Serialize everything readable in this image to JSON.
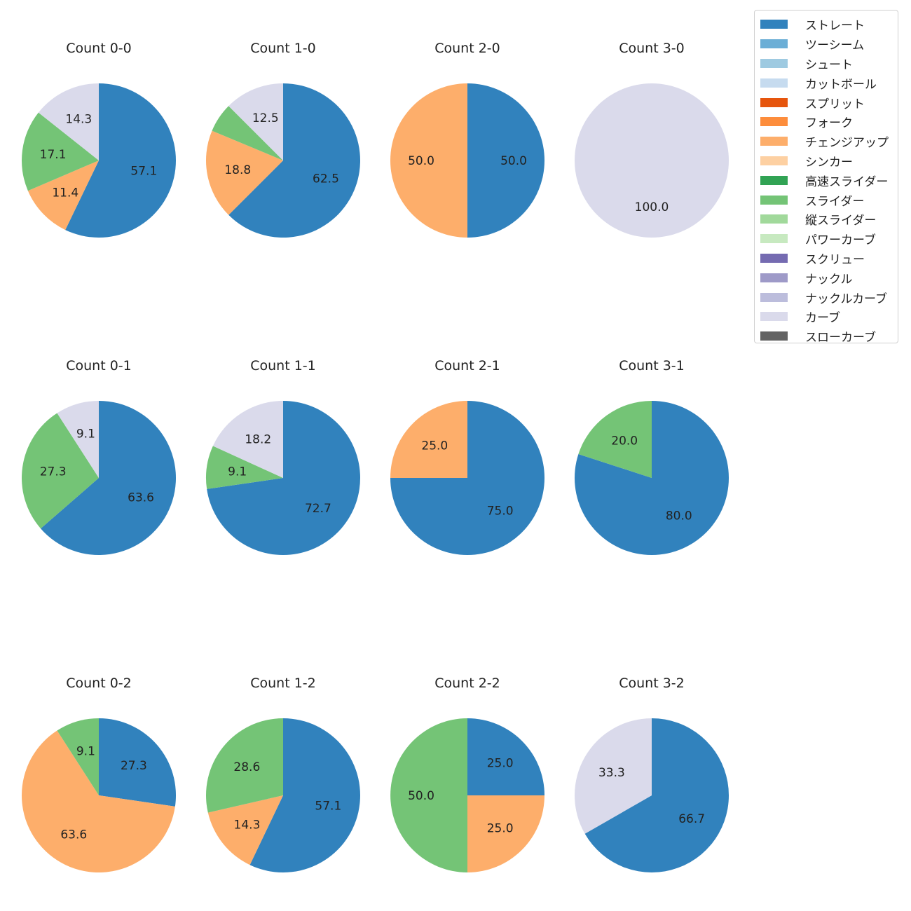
{
  "legend": {
    "placement": "top-right",
    "items": [
      {
        "label": "ストレート",
        "color": "#3182bd"
      },
      {
        "label": "ツーシーム",
        "color": "#6baed6"
      },
      {
        "label": "シュート",
        "color": "#9ecae1"
      },
      {
        "label": "カットボール",
        "color": "#c6dbef"
      },
      {
        "label": "スプリット",
        "color": "#e6550d"
      },
      {
        "label": "フォーク",
        "color": "#fd8d3c"
      },
      {
        "label": "チェンジアップ",
        "color": "#fdae6b"
      },
      {
        "label": "シンカー",
        "color": "#fdd0a2"
      },
      {
        "label": "高速スライダー",
        "color": "#31a354"
      },
      {
        "label": "スライダー",
        "color": "#74c476"
      },
      {
        "label": "縦スライダー",
        "color": "#a1d99b"
      },
      {
        "label": "パワーカーブ",
        "color": "#c7e9c0"
      },
      {
        "label": "スクリュー",
        "color": "#756bb1"
      },
      {
        "label": "ナックル",
        "color": "#9e9ac8"
      },
      {
        "label": "ナックルカーブ",
        "color": "#bcbddc"
      },
      {
        "label": "カーブ",
        "color": "#dadaeb"
      },
      {
        "label": "スローカーブ",
        "color": "#636363"
      }
    ]
  },
  "chart_data": [
    {
      "type": "pie",
      "title": "Count 0-0",
      "slices": [
        {
          "name": "ストレート",
          "value": 57.1
        },
        {
          "name": "チェンジアップ",
          "value": 11.4
        },
        {
          "name": "スライダー",
          "value": 17.1
        },
        {
          "name": "カーブ",
          "value": 14.3
        }
      ]
    },
    {
      "type": "pie",
      "title": "Count 1-0",
      "slices": [
        {
          "name": "ストレート",
          "value": 62.5
        },
        {
          "name": "チェンジアップ",
          "value": 18.8
        },
        {
          "name": "スライダー",
          "value": 6.2,
          "label_hidden": true
        },
        {
          "name": "カーブ",
          "value": 12.5
        }
      ]
    },
    {
      "type": "pie",
      "title": "Count 2-0",
      "slices": [
        {
          "name": "ストレート",
          "value": 50.0
        },
        {
          "name": "チェンジアップ",
          "value": 50.0
        }
      ]
    },
    {
      "type": "pie",
      "title": "Count 3-0",
      "slices": [
        {
          "name": "カーブ",
          "value": 100.0
        }
      ]
    },
    {
      "type": "pie",
      "title": "Count 0-1",
      "slices": [
        {
          "name": "ストレート",
          "value": 63.6
        },
        {
          "name": "スライダー",
          "value": 27.3
        },
        {
          "name": "カーブ",
          "value": 9.1
        }
      ]
    },
    {
      "type": "pie",
      "title": "Count 1-1",
      "slices": [
        {
          "name": "ストレート",
          "value": 72.7
        },
        {
          "name": "スライダー",
          "value": 9.1
        },
        {
          "name": "カーブ",
          "value": 18.2
        }
      ]
    },
    {
      "type": "pie",
      "title": "Count 2-1",
      "slices": [
        {
          "name": "ストレート",
          "value": 75.0
        },
        {
          "name": "チェンジアップ",
          "value": 25.0
        }
      ]
    },
    {
      "type": "pie",
      "title": "Count 3-1",
      "slices": [
        {
          "name": "ストレート",
          "value": 80.0
        },
        {
          "name": "スライダー",
          "value": 20.0
        }
      ]
    },
    {
      "type": "pie",
      "title": "Count 0-2",
      "slices": [
        {
          "name": "ストレート",
          "value": 27.3
        },
        {
          "name": "チェンジアップ",
          "value": 63.6
        },
        {
          "name": "スライダー",
          "value": 9.1
        }
      ]
    },
    {
      "type": "pie",
      "title": "Count 1-2",
      "slices": [
        {
          "name": "ストレート",
          "value": 57.1
        },
        {
          "name": "チェンジアップ",
          "value": 14.3
        },
        {
          "name": "スライダー",
          "value": 28.6
        }
      ]
    },
    {
      "type": "pie",
      "title": "Count 2-2",
      "slices": [
        {
          "name": "ストレート",
          "value": 25.0
        },
        {
          "name": "チェンジアップ",
          "value": 25.0
        },
        {
          "name": "スライダー",
          "value": 50.0
        }
      ]
    },
    {
      "type": "pie",
      "title": "Count 3-2",
      "slices": [
        {
          "name": "ストレート",
          "value": 66.7
        },
        {
          "name": "カーブ",
          "value": 33.3
        }
      ]
    }
  ]
}
